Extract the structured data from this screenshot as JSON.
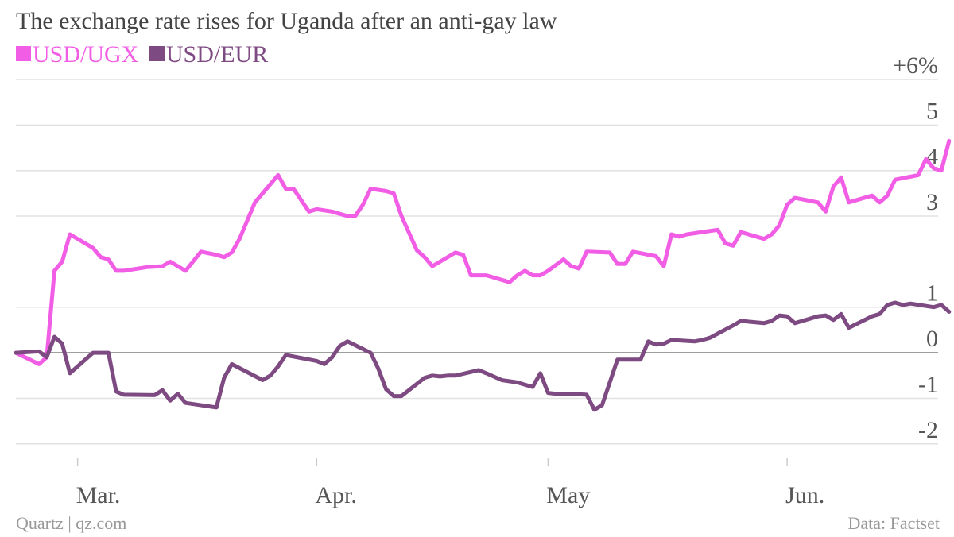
{
  "title": "The exchange rate rises for Uganda after an anti-gay law",
  "legend": [
    {
      "label": "USD/UGX",
      "color": "#f15ee5"
    },
    {
      "label": "USD/EUR",
      "color": "#7e4a82"
    }
  ],
  "footer": {
    "left": "Quartz | qz.com",
    "right": "Data: Factset"
  },
  "chart_data": {
    "type": "line",
    "ylim": [
      -2.3,
      6
    ],
    "ytick_values": [
      6,
      5,
      4,
      3,
      1,
      0,
      -1,
      -2
    ],
    "ytick_labels": [
      "+6%",
      "5",
      "4",
      "3",
      "1",
      "0",
      "-1",
      "-2"
    ],
    "xtick_labels": [
      {
        "label": "Mar.",
        "date": "2014-03-01"
      },
      {
        "label": "Apr.",
        "date": "2014-04-01"
      },
      {
        "label": "May",
        "date": "2014-05-01"
      },
      {
        "label": "Jun.",
        "date": "2014-06-01"
      }
    ],
    "xlim": [
      "2014-02-21",
      "2014-06-18"
    ],
    "grid": true,
    "series": [
      {
        "name": "USD/UGX",
        "color": "#f15ee5",
        "points": [
          [
            "2014-02-21",
            0.0
          ],
          [
            "2014-02-24",
            -0.25
          ],
          [
            "2014-02-25",
            -0.1
          ],
          [
            "2014-02-26",
            1.8
          ],
          [
            "2014-02-27",
            2.0
          ],
          [
            "2014-02-28",
            2.6
          ],
          [
            "2014-03-03",
            2.3
          ],
          [
            "2014-03-04",
            2.1
          ],
          [
            "2014-03-05",
            2.05
          ],
          [
            "2014-03-06",
            1.8
          ],
          [
            "2014-03-07",
            1.8
          ],
          [
            "2014-03-10",
            1.88
          ],
          [
            "2014-03-12",
            1.9
          ],
          [
            "2014-03-13",
            2.0
          ],
          [
            "2014-03-15",
            1.8
          ],
          [
            "2014-03-17",
            2.22
          ],
          [
            "2014-03-19",
            2.15
          ],
          [
            "2014-03-20",
            2.1
          ],
          [
            "2014-03-21",
            2.2
          ],
          [
            "2014-03-22",
            2.5
          ],
          [
            "2014-03-24",
            3.3
          ],
          [
            "2014-03-27",
            3.9
          ],
          [
            "2014-03-28",
            3.6
          ],
          [
            "2014-03-29",
            3.6
          ],
          [
            "2014-03-31",
            3.1
          ],
          [
            "2014-04-01",
            3.15
          ],
          [
            "2014-04-03",
            3.1
          ],
          [
            "2014-04-04",
            3.05
          ],
          [
            "2014-04-05",
            3.0
          ],
          [
            "2014-04-06",
            3.0
          ],
          [
            "2014-04-07",
            3.25
          ],
          [
            "2014-04-08",
            3.6
          ],
          [
            "2014-04-10",
            3.55
          ],
          [
            "2014-04-11",
            3.5
          ],
          [
            "2014-04-12",
            3.0
          ],
          [
            "2014-04-14",
            2.25
          ],
          [
            "2014-04-15",
            2.1
          ],
          [
            "2014-04-16",
            1.9
          ],
          [
            "2014-04-19",
            2.2
          ],
          [
            "2014-04-20",
            2.15
          ],
          [
            "2014-04-21",
            1.7
          ],
          [
            "2014-04-23",
            1.7
          ],
          [
            "2014-04-26",
            1.55
          ],
          [
            "2014-04-27",
            1.7
          ],
          [
            "2014-04-28",
            1.8
          ],
          [
            "2014-04-29",
            1.7
          ],
          [
            "2014-04-30",
            1.7
          ],
          [
            "2014-05-01",
            1.8
          ],
          [
            "2014-05-03",
            2.05
          ],
          [
            "2014-05-04",
            1.9
          ],
          [
            "2014-05-05",
            1.85
          ],
          [
            "2014-05-06",
            2.22
          ],
          [
            "2014-05-09",
            2.2
          ],
          [
            "2014-05-10",
            1.95
          ],
          [
            "2014-05-11",
            1.95
          ],
          [
            "2014-05-12",
            2.22
          ],
          [
            "2014-05-15",
            2.12
          ],
          [
            "2014-05-16",
            1.9
          ],
          [
            "2014-05-17",
            2.6
          ],
          [
            "2014-05-18",
            2.55
          ],
          [
            "2014-05-19",
            2.6
          ],
          [
            "2014-05-23",
            2.7
          ],
          [
            "2014-05-24",
            2.4
          ],
          [
            "2014-05-25",
            2.35
          ],
          [
            "2014-05-26",
            2.65
          ],
          [
            "2014-05-29",
            2.5
          ],
          [
            "2014-05-30",
            2.6
          ],
          [
            "2014-05-31",
            2.8
          ],
          [
            "2014-06-01",
            3.25
          ],
          [
            "2014-06-02",
            3.4
          ],
          [
            "2014-06-05",
            3.3
          ],
          [
            "2014-06-06",
            3.1
          ],
          [
            "2014-06-07",
            3.65
          ],
          [
            "2014-06-08",
            3.85
          ],
          [
            "2014-06-09",
            3.3
          ],
          [
            "2014-06-12",
            3.45
          ],
          [
            "2014-06-13",
            3.3
          ],
          [
            "2014-06-14",
            3.45
          ],
          [
            "2014-06-15",
            3.8
          ],
          [
            "2014-06-18",
            3.9
          ],
          [
            "2014-06-19",
            4.25
          ],
          [
            "2014-06-20",
            4.05
          ],
          [
            "2014-06-21",
            4.0
          ],
          [
            "2014-06-22",
            4.65
          ]
        ]
      },
      {
        "name": "USD/EUR",
        "color": "#7e4a82",
        "points": [
          [
            "2014-02-21",
            0.0
          ],
          [
            "2014-02-24",
            0.03
          ],
          [
            "2014-02-25",
            -0.1
          ],
          [
            "2014-02-26",
            0.35
          ],
          [
            "2014-02-27",
            0.2
          ],
          [
            "2014-02-28",
            -0.45
          ],
          [
            "2014-03-03",
            0.0
          ],
          [
            "2014-03-05",
            0.0
          ],
          [
            "2014-03-06",
            -0.85
          ],
          [
            "2014-03-07",
            -0.92
          ],
          [
            "2014-03-11",
            -0.93
          ],
          [
            "2014-03-12",
            -0.82
          ],
          [
            "2014-03-13",
            -1.05
          ],
          [
            "2014-03-14",
            -0.9
          ],
          [
            "2014-03-15",
            -1.1
          ],
          [
            "2014-03-19",
            -1.2
          ],
          [
            "2014-03-20",
            -0.55
          ],
          [
            "2014-03-21",
            -0.25
          ],
          [
            "2014-03-25",
            -0.6
          ],
          [
            "2014-03-26",
            -0.5
          ],
          [
            "2014-03-27",
            -0.3
          ],
          [
            "2014-03-28",
            -0.05
          ],
          [
            "2014-04-01",
            -0.18
          ],
          [
            "2014-04-02",
            -0.25
          ],
          [
            "2014-04-03",
            -0.1
          ],
          [
            "2014-04-04",
            0.15
          ],
          [
            "2014-04-05",
            0.25
          ],
          [
            "2014-04-08",
            0.0
          ],
          [
            "2014-04-09",
            -0.35
          ],
          [
            "2014-04-10",
            -0.8
          ],
          [
            "2014-04-11",
            -0.95
          ],
          [
            "2014-04-12",
            -0.95
          ],
          [
            "2014-04-15",
            -0.55
          ],
          [
            "2014-04-16",
            -0.5
          ],
          [
            "2014-04-17",
            -0.52
          ],
          [
            "2014-04-18",
            -0.5
          ],
          [
            "2014-04-19",
            -0.5
          ],
          [
            "2014-04-22",
            -0.38
          ],
          [
            "2014-04-23",
            -0.45
          ],
          [
            "2014-04-25",
            -0.6
          ],
          [
            "2014-04-27",
            -0.65
          ],
          [
            "2014-04-29",
            -0.75
          ],
          [
            "2014-04-30",
            -0.45
          ],
          [
            "2014-05-01",
            -0.88
          ],
          [
            "2014-05-02",
            -0.9
          ],
          [
            "2014-05-04",
            -0.9
          ],
          [
            "2014-05-06",
            -0.92
          ],
          [
            "2014-05-07",
            -1.25
          ],
          [
            "2014-05-08",
            -1.15
          ],
          [
            "2014-05-10",
            -0.15
          ],
          [
            "2014-05-13",
            -0.15
          ],
          [
            "2014-05-14",
            0.25
          ],
          [
            "2014-05-15",
            0.18
          ],
          [
            "2014-05-16",
            0.2
          ],
          [
            "2014-05-17",
            0.28
          ],
          [
            "2014-05-20",
            0.25
          ],
          [
            "2014-05-21",
            0.28
          ],
          [
            "2014-05-22",
            0.33
          ],
          [
            "2014-05-23",
            0.42
          ],
          [
            "2014-05-25",
            0.6
          ],
          [
            "2014-05-26",
            0.7
          ],
          [
            "2014-05-29",
            0.65
          ],
          [
            "2014-05-30",
            0.7
          ],
          [
            "2014-05-31",
            0.82
          ],
          [
            "2014-06-01",
            0.8
          ],
          [
            "2014-06-02",
            0.65
          ],
          [
            "2014-06-05",
            0.8
          ],
          [
            "2014-06-06",
            0.82
          ],
          [
            "2014-06-07",
            0.72
          ],
          [
            "2014-06-08",
            0.85
          ],
          [
            "2014-06-09",
            0.55
          ],
          [
            "2014-06-12",
            0.8
          ],
          [
            "2014-06-13",
            0.85
          ],
          [
            "2014-06-14",
            1.05
          ],
          [
            "2014-06-15",
            1.1
          ],
          [
            "2014-06-16",
            1.05
          ],
          [
            "2014-06-17",
            1.08
          ],
          [
            "2014-06-20",
            1.0
          ],
          [
            "2014-06-21",
            1.05
          ],
          [
            "2014-06-22",
            0.9
          ]
        ]
      }
    ]
  }
}
